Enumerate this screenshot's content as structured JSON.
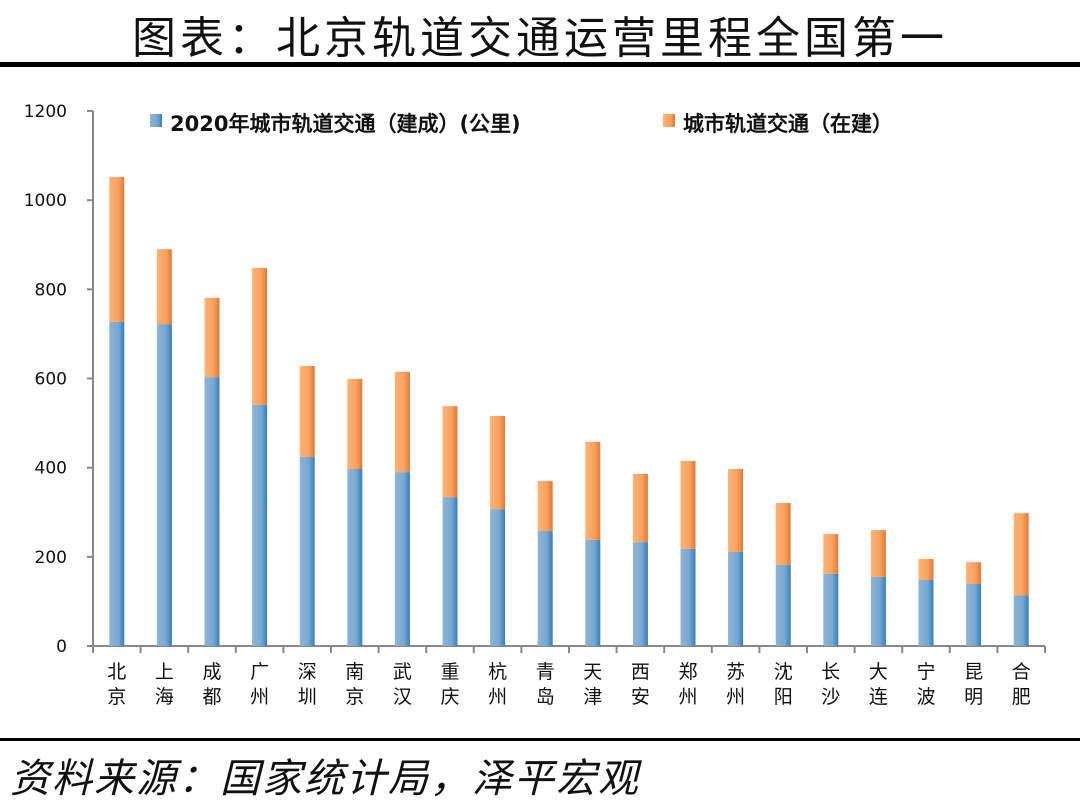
{
  "title": "图表：北京轨道交通运营里程全国第一",
  "source": "资料来源：国家统计局，泽平宏观",
  "chart_data": {
    "type": "bar",
    "stacked": true,
    "categories": [
      "北京",
      "上海",
      "成都",
      "广州",
      "深圳",
      "南京",
      "武汉",
      "重庆",
      "杭州",
      "青岛",
      "天津",
      "西安",
      "郑州",
      "苏州",
      "沈阳",
      "长沙",
      "大连",
      "宁波",
      "昆明",
      "合肥"
    ],
    "series": [
      {
        "name": "2020年城市轨道交通（建成）(公里)",
        "color": "#5b9bd5",
        "values": [
          727,
          722,
          603,
          541,
          424,
          397,
          390,
          334,
          307,
          258,
          238,
          233,
          218,
          211,
          182,
          162,
          155,
          148,
          139,
          114
        ]
      },
      {
        "name": "城市轨道交通（在建）",
        "color": "#f79646",
        "values": [
          325,
          168,
          178,
          307,
          204,
          202,
          225,
          204,
          209,
          112,
          220,
          153,
          197,
          186,
          139,
          89,
          105,
          47,
          49,
          184
        ]
      }
    ],
    "ylim": [
      0,
      1200
    ],
    "yticks": [
      0,
      200,
      400,
      600,
      800,
      1000,
      1200
    ],
    "grid": false,
    "legend": "top"
  }
}
